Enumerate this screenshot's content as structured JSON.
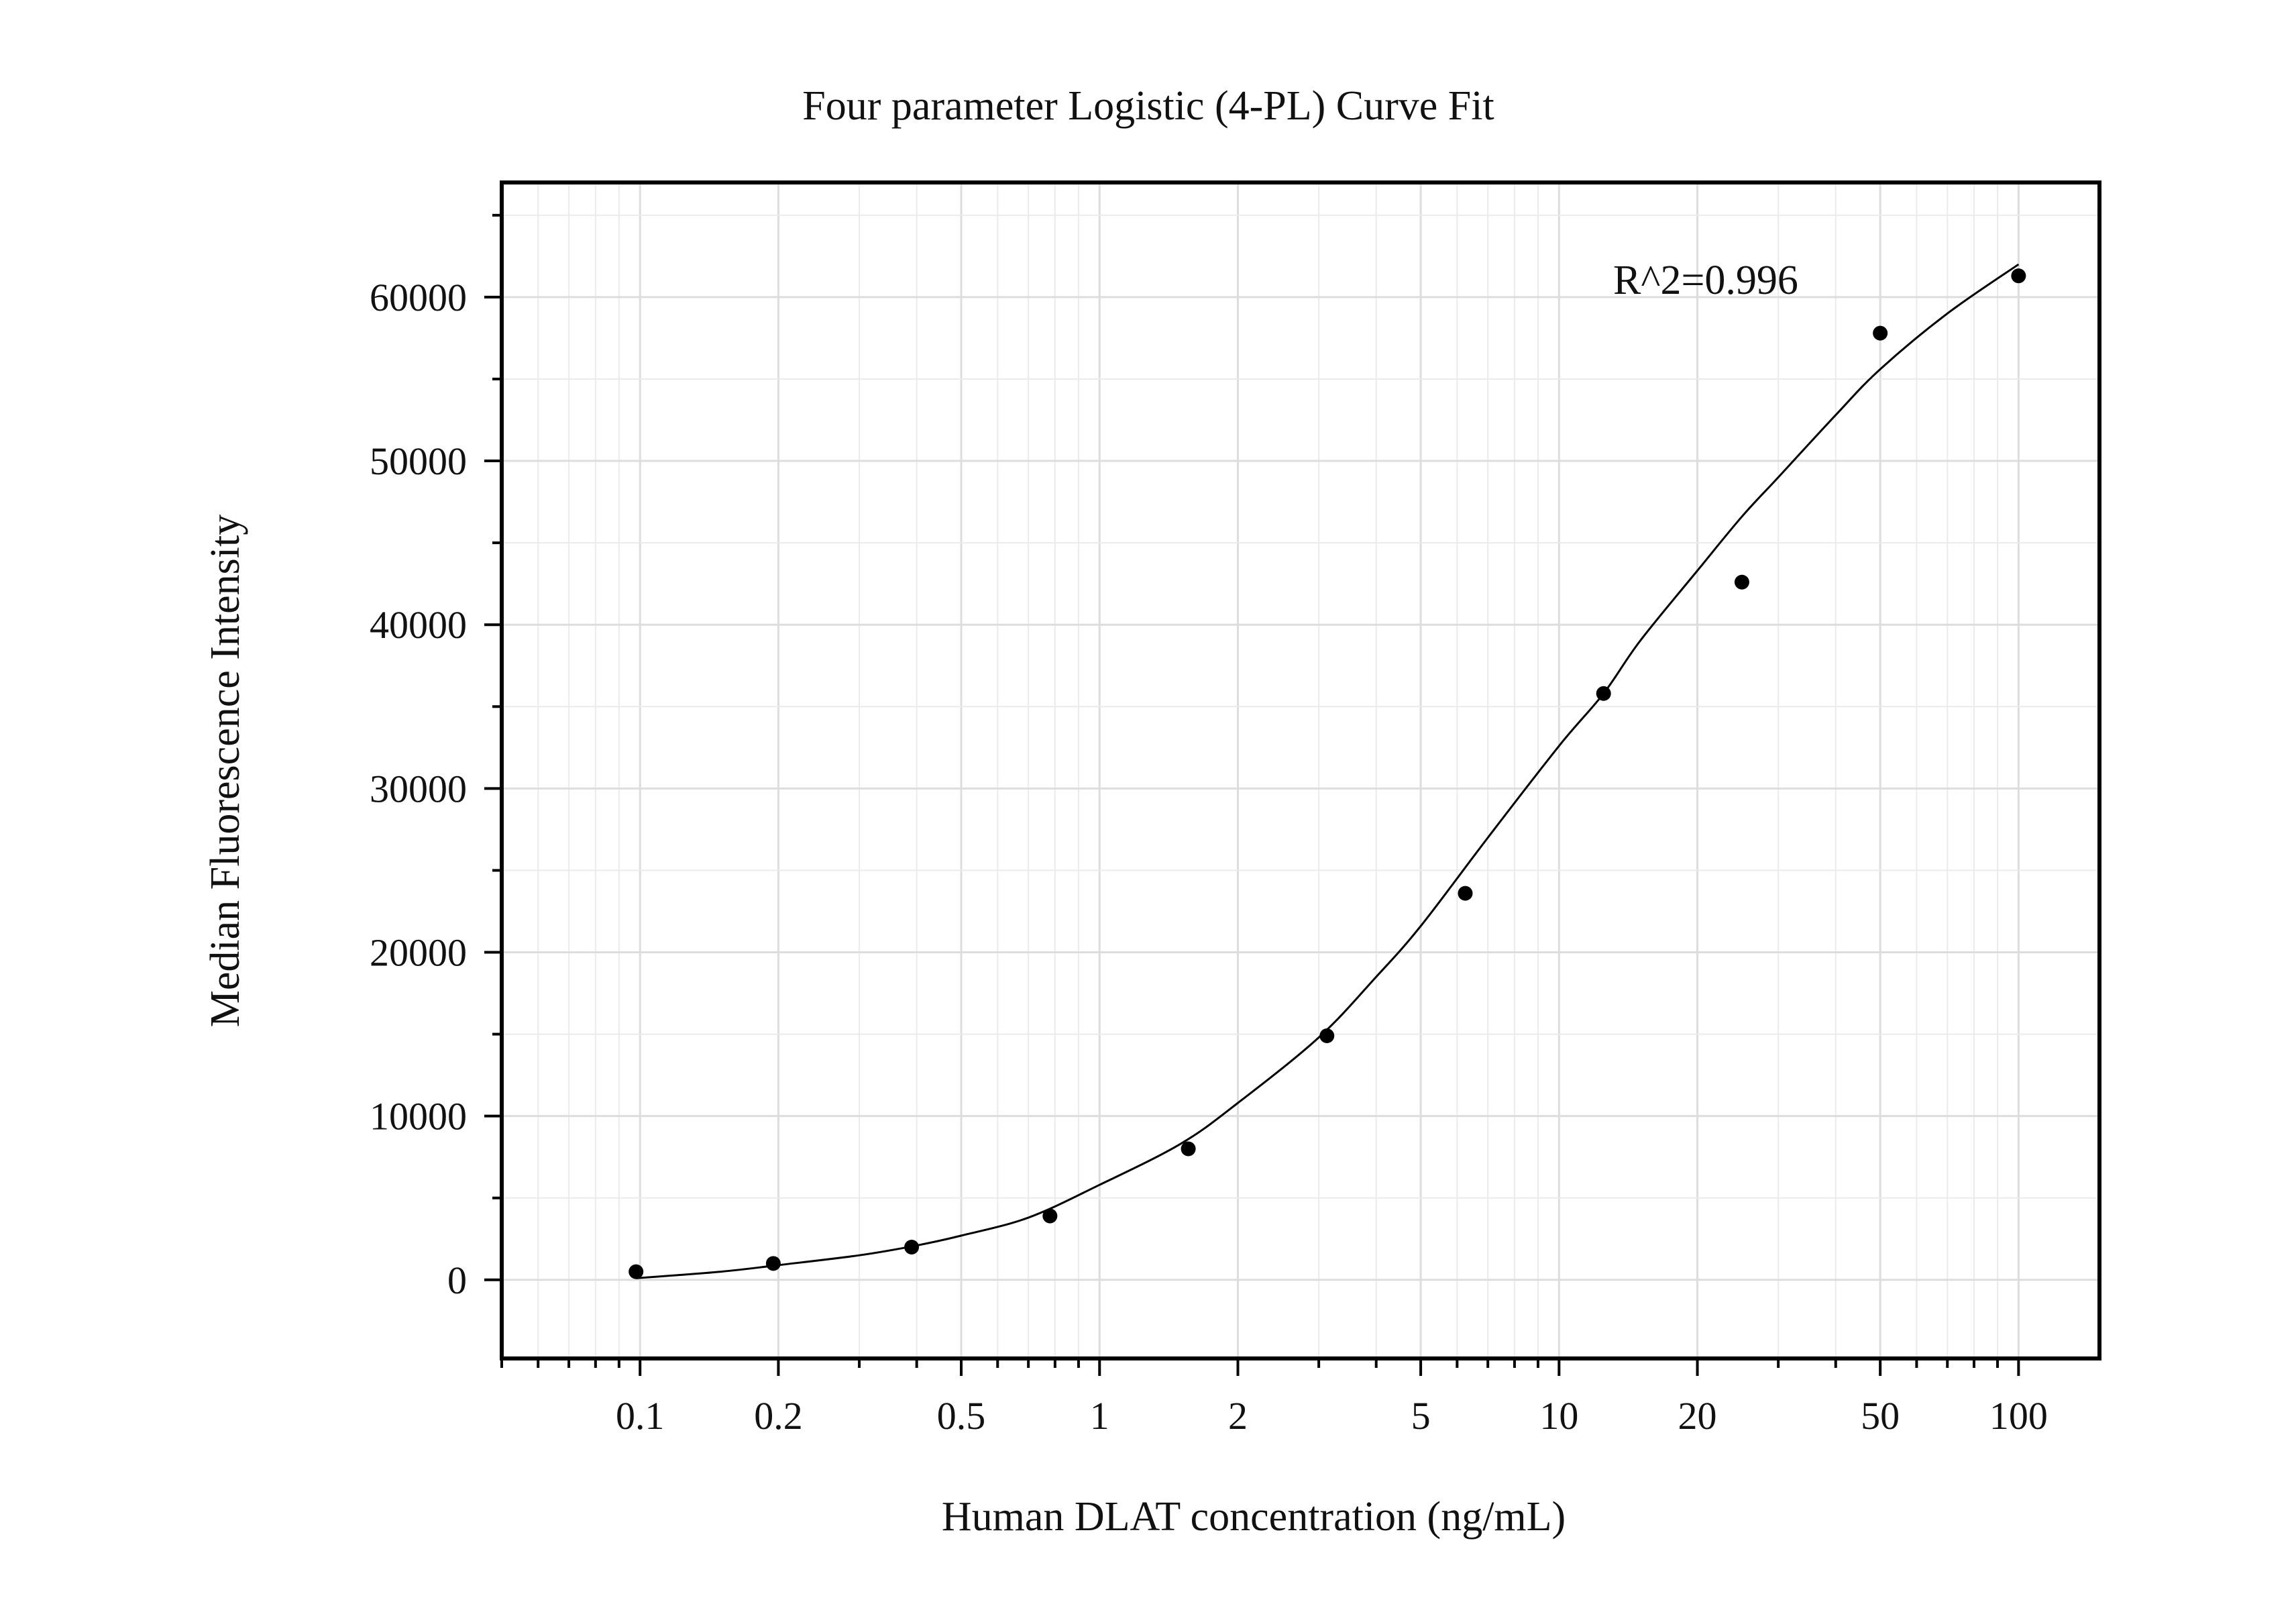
{
  "chart_data": {
    "type": "scatter",
    "title": "Four parameter Logistic (4-PL) Curve Fit",
    "xlabel": "Human DLAT concentration (ng/mL)",
    "ylabel": "Median Fluorescence Intensity",
    "x_scale": "log",
    "xlim": [
      0.05,
      150
    ],
    "ylim": [
      -4800,
      67000
    ],
    "x_ticks": [
      0.1,
      0.2,
      0.5,
      1,
      2,
      5,
      10,
      20,
      50,
      100
    ],
    "x_tick_labels": [
      "0.1",
      "0.2",
      "0.5",
      "1",
      "2",
      "5",
      "10",
      "20",
      "50",
      "100"
    ],
    "y_ticks": [
      0,
      10000,
      20000,
      30000,
      40000,
      50000,
      60000
    ],
    "y_tick_labels": [
      "0",
      "10000",
      "20000",
      "30000",
      "40000",
      "50000",
      "60000"
    ],
    "grid": true,
    "annotation": "R^2=0.996",
    "series": [
      {
        "kind": "points",
        "color": "#000000",
        "x": [
          0.098,
          0.195,
          0.39,
          0.78,
          1.56,
          3.125,
          6.25,
          12.5,
          25,
          50,
          100
        ],
        "y": [
          500,
          1000,
          2000,
          3900,
          8000,
          14900,
          23600,
          35800,
          42600,
          57800,
          61300
        ]
      },
      {
        "kind": "fit-curve",
        "color": "#000000",
        "x": [
          0.098,
          0.15,
          0.2,
          0.3,
          0.4,
          0.5,
          0.7,
          1,
          1.5,
          2,
          3,
          4,
          5,
          7,
          10,
          12.5,
          15,
          20,
          25,
          30,
          40,
          50,
          70,
          100
        ],
        "y": [
          100,
          500,
          900,
          1500,
          2100,
          2700,
          3800,
          5800,
          8300,
          10800,
          14800,
          18500,
          21600,
          27000,
          32600,
          35800,
          39000,
          43300,
          46600,
          49000,
          52800,
          55600,
          59000,
          62000
        ]
      }
    ]
  }
}
